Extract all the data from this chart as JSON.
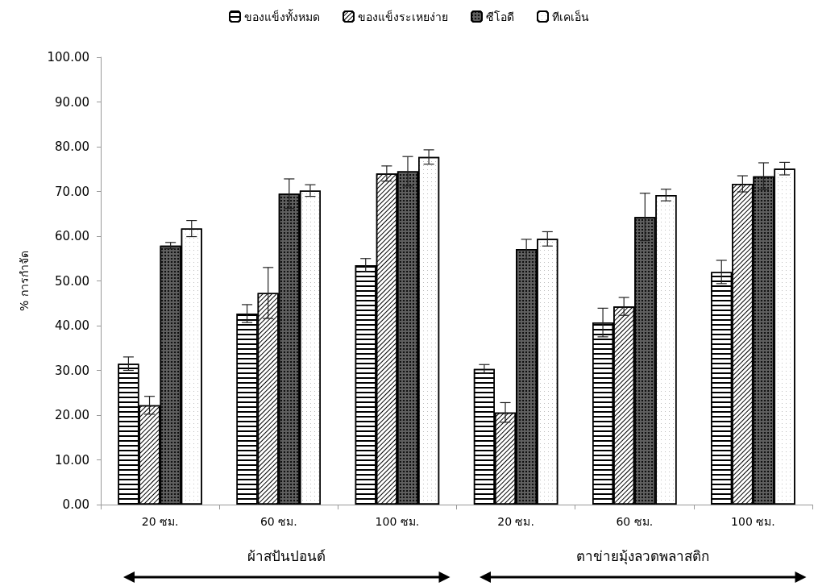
{
  "chart_data": {
    "type": "bar",
    "ylabel": "% การกำจัด",
    "categories": [
      "20 ซม.",
      "60 ซม.",
      "100 ซม.",
      "20 ซม.",
      "60 ซม.",
      "100 ซม."
    ],
    "series": [
      {
        "name": "ของแข็งทั้งหมด",
        "color": "#ffffff",
        "values": [
          31.5,
          42.7,
          53.5,
          30.3,
          40.7,
          52.0
        ],
        "errors": [
          1.5,
          2.0,
          1.5,
          1.0,
          3.2,
          2.6
        ]
      },
      {
        "name": "ของแข็งระเหยง่าย",
        "color": "#ffffff",
        "values": [
          22.2,
          47.3,
          74.0,
          20.6,
          44.3,
          71.7
        ],
        "errors": [
          2.0,
          5.7,
          1.7,
          2.2,
          2.0,
          1.8
        ]
      },
      {
        "name": "ซีโอดี",
        "color": "#606060",
        "values": [
          57.9,
          69.5,
          74.5,
          57.1,
          64.3,
          73.4
        ],
        "errors": [
          0.7,
          3.3,
          3.3,
          2.2,
          5.3,
          3.0
        ]
      },
      {
        "name": "ทีเคเอ็น",
        "color": "#ffffff",
        "values": [
          61.7,
          70.2,
          77.7,
          59.4,
          69.2,
          75.1
        ],
        "errors": [
          1.8,
          1.3,
          1.6,
          1.6,
          1.3,
          1.4
        ]
      }
    ],
    "ylim": [
      0,
      100
    ],
    "yticks": [
      {
        "value": 0,
        "label": "0.00"
      },
      {
        "value": 10,
        "label": "10.00"
      },
      {
        "value": 20,
        "label": "20.00"
      },
      {
        "value": 30,
        "label": "30.00"
      },
      {
        "value": 40,
        "label": "40.00"
      },
      {
        "value": 50,
        "label": "50.00"
      },
      {
        "value": 60,
        "label": "60.00"
      },
      {
        "value": 70,
        "label": "70.00"
      },
      {
        "value": 80,
        "label": "80.00"
      },
      {
        "value": 90,
        "label": "90.00"
      },
      {
        "value": 100,
        "label": "100.00"
      }
    ],
    "grid": false,
    "legend": "top",
    "annotations": [
      "ผ้าสปันปอนด์",
      "ตาข่ายมุ้งลวดพลาสติก"
    ]
  }
}
